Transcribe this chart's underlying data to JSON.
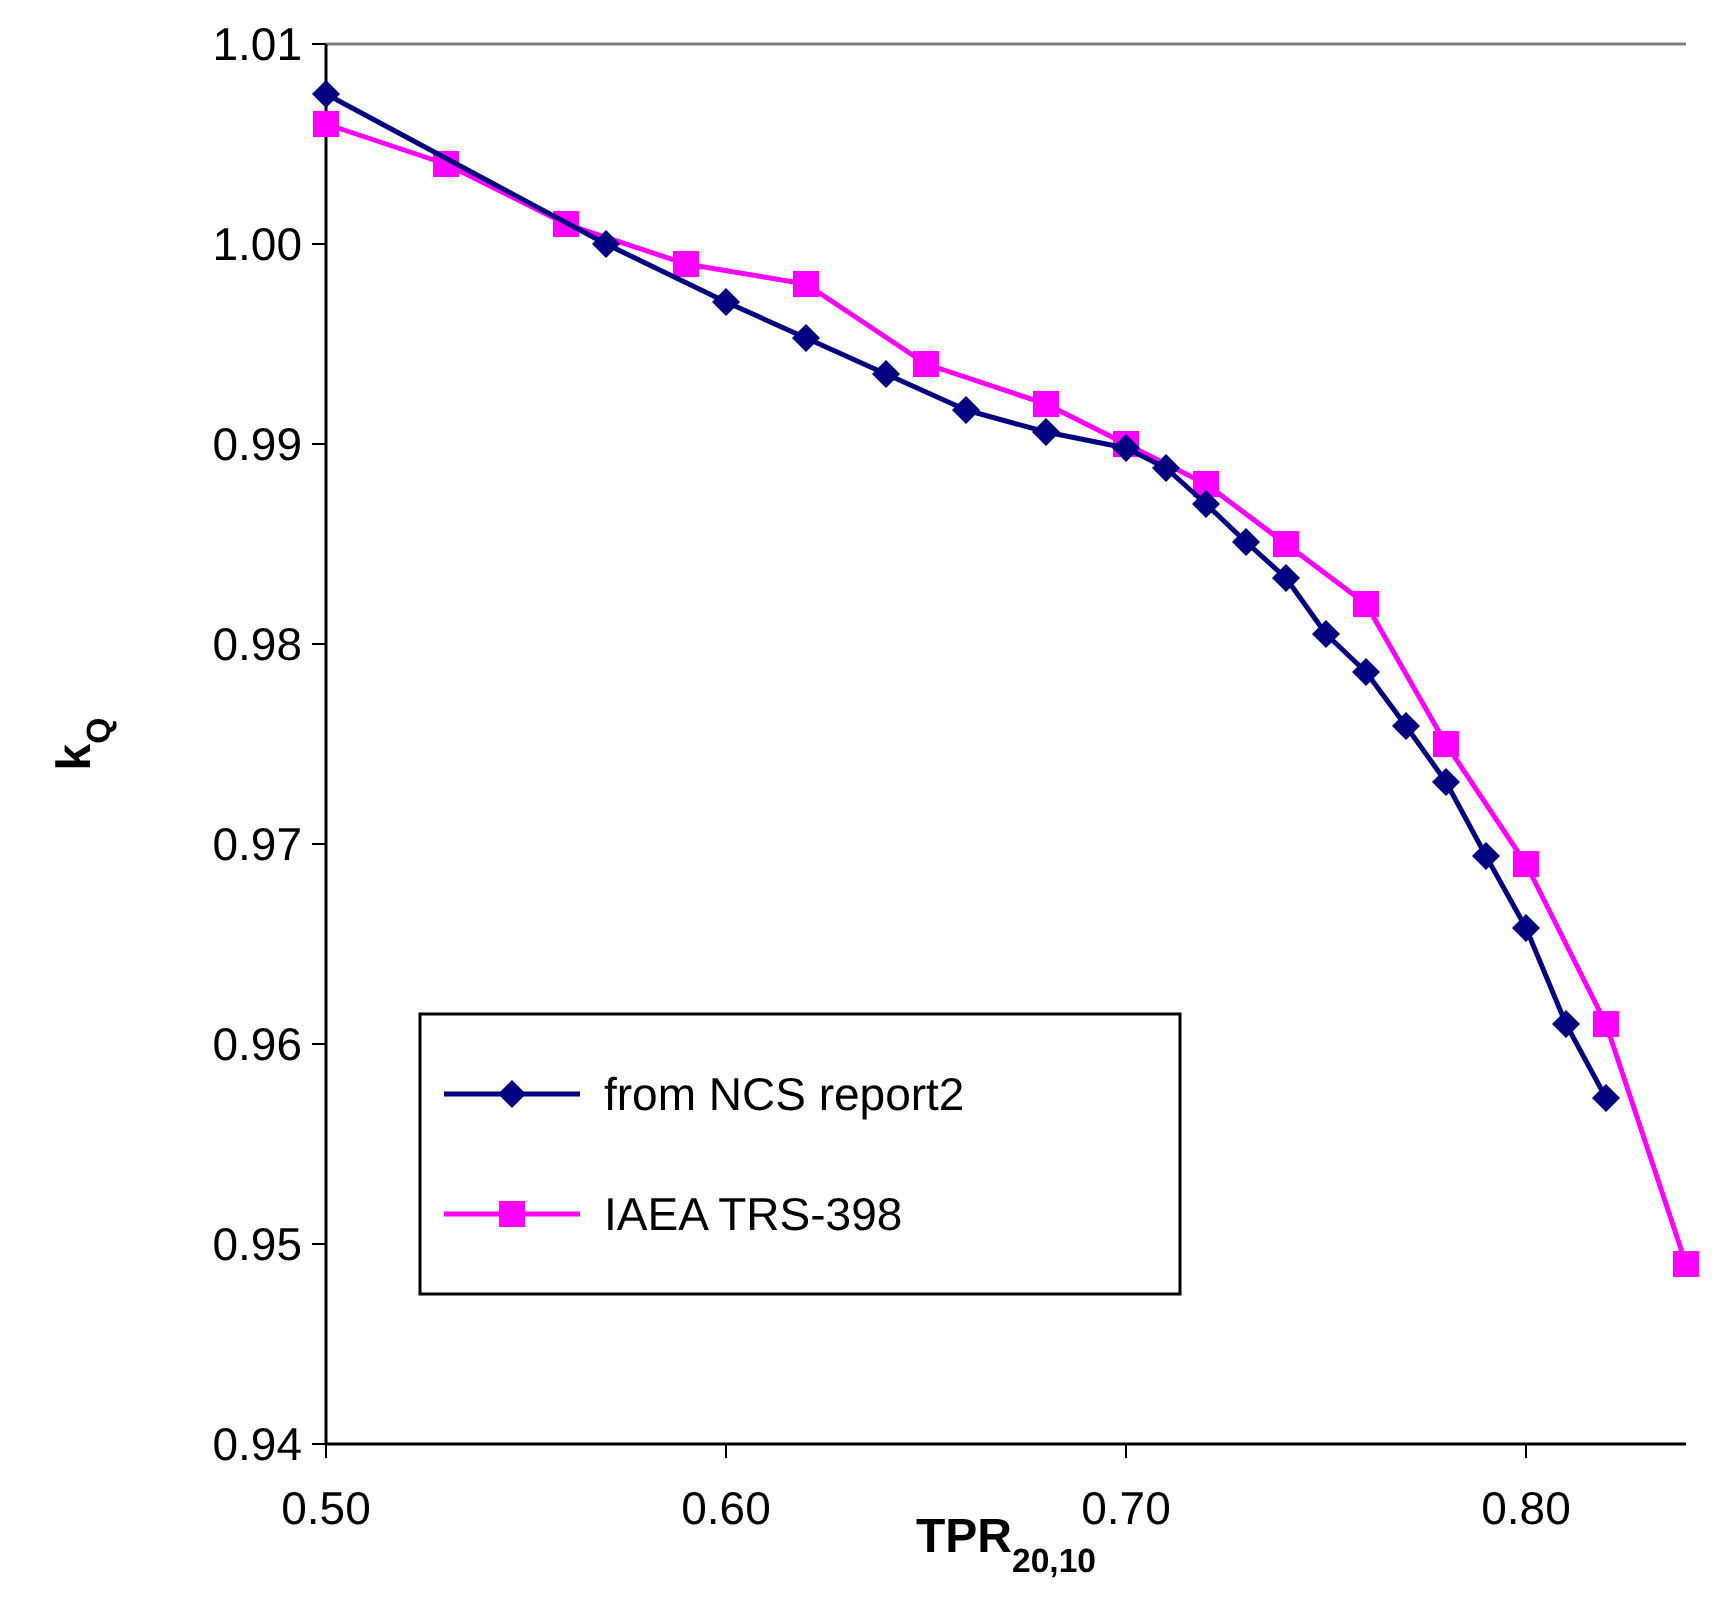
{
  "chart_data": {
    "type": "line",
    "xlabel": "TPR$_{20,10}$",
    "ylabel": "k$_{Q}$",
    "xlim": [
      0.5,
      0.84
    ],
    "ylim": [
      0.94,
      1.01
    ],
    "xticks": [
      {
        "value": 0.5,
        "label": "0.50"
      },
      {
        "value": 0.6,
        "label": "0.60"
      },
      {
        "value": 0.7,
        "label": "0.70"
      },
      {
        "value": 0.8,
        "label": "0.80"
      }
    ],
    "yticks": [
      0.94,
      0.95,
      0.96,
      0.97,
      0.98,
      0.99,
      {
        "value": 1.0,
        "label": "1.00"
      },
      1.01
    ],
    "grid": false,
    "legend": "bottom left",
    "series": [
      {
        "name": "from NCS report2",
        "color": "#000080",
        "marker": "diamond",
        "x": [
          0.5,
          0.57,
          0.6,
          0.62,
          0.64,
          0.66,
          0.68,
          0.7,
          0.71,
          0.72,
          0.73,
          0.74,
          0.75,
          0.76,
          0.77,
          0.78,
          0.79,
          0.8,
          0.81,
          0.82
        ],
        "values": [
          1.0075,
          1.0,
          0.9971,
          0.9953,
          0.9935,
          0.9917,
          0.9906,
          0.9898,
          0.9888,
          0.987,
          0.9851,
          0.9833,
          0.9805,
          0.9786,
          0.9759,
          0.9731,
          0.9694,
          0.9658,
          0.961,
          0.9573
        ]
      },
      {
        "name": "IAEA TRS-398",
        "color": "#ff00ff",
        "marker": "square",
        "x": [
          0.5,
          0.53,
          0.56,
          0.59,
          0.62,
          0.65,
          0.68,
          0.7,
          0.72,
          0.74,
          0.76,
          0.78,
          0.8,
          0.82,
          0.84
        ],
        "values": [
          1.006,
          1.004,
          1.001,
          0.999,
          0.998,
          0.994,
          0.992,
          0.99,
          0.988,
          0.985,
          0.982,
          0.975,
          0.969,
          0.961,
          0.949
        ]
      }
    ]
  }
}
